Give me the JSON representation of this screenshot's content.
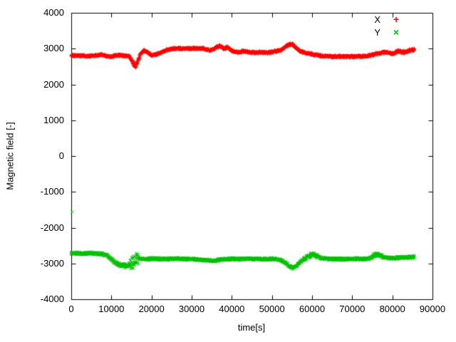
{
  "chart_data": {
    "type": "scatter",
    "title": "",
    "xlabel": "time[s]",
    "ylabel": "Magnetic field [-]",
    "xlim": [
      0,
      90000
    ],
    "ylim": [
      -4000,
      4000
    ],
    "xticks": [
      0,
      10000,
      20000,
      30000,
      40000,
      50000,
      60000,
      70000,
      80000,
      90000
    ],
    "yticks": [
      -4000,
      -3000,
      -2000,
      -1000,
      0,
      1000,
      2000,
      3000,
      4000
    ],
    "grid": false,
    "legend_position": "top-right",
    "background": "#ffffff",
    "axis_color": "#000000",
    "series": [
      {
        "name": "X",
        "color": "#ff0000",
        "marker": "plus",
        "marker_glyph": "+",
        "x_start": 0,
        "x_end": 85500,
        "sample_step": 45,
        "noise_base": 40,
        "noise_regions": [
          {
            "from": 14800,
            "to": 17200,
            "amp": 90
          },
          {
            "from": 35000,
            "to": 40000,
            "amp": 45
          },
          {
            "from": 80500,
            "to": 85500,
            "amp": 50
          }
        ],
        "anchors": [
          [
            0,
            2810
          ],
          [
            2500,
            2800
          ],
          [
            5000,
            2790
          ],
          [
            7500,
            2830
          ],
          [
            9000,
            2780
          ],
          [
            10000,
            2770
          ],
          [
            11500,
            2820
          ],
          [
            13000,
            2800
          ],
          [
            14500,
            2790
          ],
          [
            15300,
            2600
          ],
          [
            16000,
            2520
          ],
          [
            16600,
            2650
          ],
          [
            17300,
            2870
          ],
          [
            18200,
            2940
          ],
          [
            19000,
            2900
          ],
          [
            20000,
            2810
          ],
          [
            21000,
            2830
          ],
          [
            22500,
            2900
          ],
          [
            24000,
            2970
          ],
          [
            25500,
            3000
          ],
          [
            28000,
            3000
          ],
          [
            31000,
            3010
          ],
          [
            33000,
            3000
          ],
          [
            34500,
            2950
          ],
          [
            36000,
            3020
          ],
          [
            37000,
            3080
          ],
          [
            38000,
            3000
          ],
          [
            39000,
            3040
          ],
          [
            40000,
            2950
          ],
          [
            41500,
            2900
          ],
          [
            43000,
            2920
          ],
          [
            45000,
            2890
          ],
          [
            47000,
            2900
          ],
          [
            49000,
            2890
          ],
          [
            51000,
            2930
          ],
          [
            52500,
            2980
          ],
          [
            54000,
            3100
          ],
          [
            55000,
            3130
          ],
          [
            56000,
            3030
          ],
          [
            57000,
            2930
          ],
          [
            58500,
            2880
          ],
          [
            60000,
            2850
          ],
          [
            61500,
            2810
          ],
          [
            63000,
            2790
          ],
          [
            65000,
            2780
          ],
          [
            68000,
            2780
          ],
          [
            71000,
            2780
          ],
          [
            73500,
            2790
          ],
          [
            75500,
            2840
          ],
          [
            77000,
            2880
          ],
          [
            78500,
            2900
          ],
          [
            80000,
            2860
          ],
          [
            81500,
            2930
          ],
          [
            83000,
            2900
          ],
          [
            84500,
            2950
          ],
          [
            85500,
            2960
          ]
        ],
        "outliers": []
      },
      {
        "name": "Y",
        "color": "#00c000",
        "marker": "cross",
        "marker_glyph": "×",
        "x_start": 0,
        "x_end": 85500,
        "sample_step": 45,
        "noise_base": 45,
        "noise_regions": [
          {
            "from": 9500,
            "to": 14500,
            "amp": 65
          },
          {
            "from": 14600,
            "to": 16800,
            "amp": 230
          },
          {
            "from": 58000,
            "to": 61500,
            "amp": 80
          },
          {
            "from": 75000,
            "to": 77500,
            "amp": 70
          }
        ],
        "anchors": [
          [
            0,
            -2710
          ],
          [
            2500,
            -2720
          ],
          [
            5000,
            -2715
          ],
          [
            7500,
            -2730
          ],
          [
            9000,
            -2780
          ],
          [
            10000,
            -2890
          ],
          [
            11000,
            -2990
          ],
          [
            12000,
            -3040
          ],
          [
            13000,
            -3060
          ],
          [
            14000,
            -3070
          ],
          [
            14800,
            -3020
          ],
          [
            15500,
            -2950
          ],
          [
            16200,
            -2870
          ],
          [
            17000,
            -2870
          ],
          [
            18500,
            -2880
          ],
          [
            20000,
            -2870
          ],
          [
            23000,
            -2875
          ],
          [
            26000,
            -2870
          ],
          [
            29000,
            -2880
          ],
          [
            32000,
            -2890
          ],
          [
            34000,
            -2910
          ],
          [
            35500,
            -2930
          ],
          [
            37000,
            -2900
          ],
          [
            38500,
            -2880
          ],
          [
            40000,
            -2870
          ],
          [
            42000,
            -2880
          ],
          [
            44000,
            -2870
          ],
          [
            46000,
            -2880
          ],
          [
            48000,
            -2880
          ],
          [
            50000,
            -2870
          ],
          [
            52000,
            -2890
          ],
          [
            53500,
            -2990
          ],
          [
            54500,
            -3090
          ],
          [
            55200,
            -3130
          ],
          [
            56000,
            -3070
          ],
          [
            57000,
            -2960
          ],
          [
            58000,
            -2870
          ],
          [
            59000,
            -2800
          ],
          [
            60000,
            -2760
          ],
          [
            61000,
            -2790
          ],
          [
            62500,
            -2860
          ],
          [
            64000,
            -2870
          ],
          [
            66000,
            -2875
          ],
          [
            68000,
            -2880
          ],
          [
            70000,
            -2870
          ],
          [
            72000,
            -2875
          ],
          [
            74000,
            -2870
          ],
          [
            75300,
            -2790
          ],
          [
            76200,
            -2730
          ],
          [
            77000,
            -2770
          ],
          [
            78000,
            -2830
          ],
          [
            79500,
            -2850
          ],
          [
            81000,
            -2845
          ],
          [
            82500,
            -2835
          ],
          [
            84000,
            -2825
          ],
          [
            85500,
            -2820
          ]
        ],
        "outliers": [
          [
            250,
            -1560
          ]
        ]
      }
    ]
  }
}
